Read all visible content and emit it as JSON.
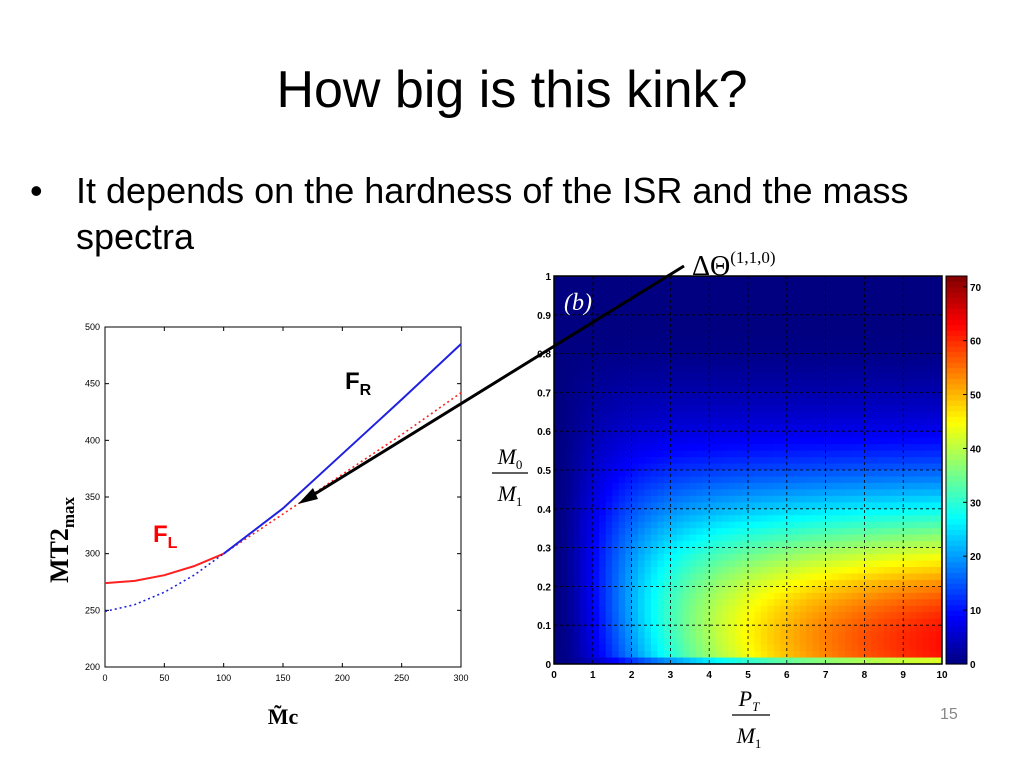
{
  "slide": {
    "title": "How big is this kink?",
    "bullet": "It depends on the hardness of the ISR and the mass spectra",
    "annotation": "ΔΘ",
    "annotation_sup": "(1,1,0)",
    "slide_number": "15"
  },
  "chart_data": [
    {
      "type": "line",
      "xlabel": "M̃c",
      "ylabel": "MT2",
      "ylabel_sub": "max",
      "xlim": [
        0,
        300
      ],
      "ylim": [
        200,
        500
      ],
      "xticks": [
        "0",
        "50",
        "100",
        "150",
        "200",
        "250",
        "300"
      ],
      "yticks": [
        "200",
        "250",
        "300",
        "350",
        "400",
        "450",
        "500"
      ],
      "grid": false,
      "series": [
        {
          "name": "F",
          "sub": "L",
          "color": "#ff2020",
          "style": "solid",
          "x": [
            0,
            25,
            50,
            75,
            100
          ],
          "y": [
            274,
            276,
            281,
            289,
            300
          ]
        },
        {
          "color": "#ff2020",
          "style": "dotted",
          "x": [
            100,
            150,
            200,
            250,
            300
          ],
          "y": [
            300,
            335,
            370,
            405,
            442
          ]
        },
        {
          "name": "F",
          "sub": "R",
          "color": "#2020e0",
          "style": "solid",
          "x": [
            100,
            150,
            200,
            250,
            300
          ],
          "y": [
            300,
            340,
            388,
            436,
            485
          ]
        },
        {
          "color": "#2020e0",
          "style": "dotted",
          "x": [
            0,
            25,
            50,
            75,
            100
          ],
          "y": [
            249,
            255,
            266,
            281,
            300
          ]
        }
      ]
    },
    {
      "type": "heatmap",
      "panel_label": "(b)",
      "xlabel_num": "P",
      "xlabel_num_sub": "T",
      "xlabel_den": "M",
      "xlabel_den_sub": "1",
      "ylabel_num": "M",
      "ylabel_num_sub": "0",
      "ylabel_den": "M",
      "ylabel_den_sub": "1",
      "xlim": [
        0,
        10
      ],
      "ylim": [
        0,
        1
      ],
      "xticks": [
        "0",
        "1",
        "2",
        "3",
        "4",
        "5",
        "6",
        "7",
        "8",
        "9",
        "10"
      ],
      "yticks": [
        "0",
        "0.1",
        "0.2",
        "0.3",
        "0.4",
        "0.5",
        "0.6",
        "0.7",
        "0.8",
        "0.9",
        "1"
      ],
      "colorbar_ticks": [
        "0",
        "10",
        "20",
        "30",
        "40",
        "50",
        "60",
        "70"
      ],
      "colorbar_range": [
        0,
        72
      ],
      "colormap": "jet",
      "grid": true
    }
  ]
}
